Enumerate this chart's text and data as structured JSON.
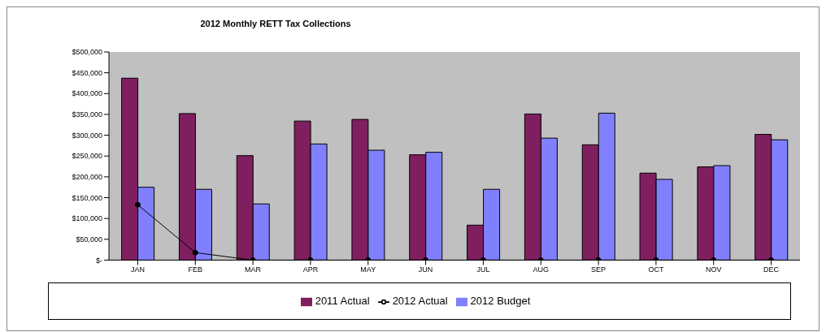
{
  "chart_data": {
    "type": "bar",
    "title": "2012 Monthly RETT Tax Collections",
    "categories": [
      "JAN",
      "FEB",
      "MAR",
      "APR",
      "MAY",
      "JUN",
      "JUL",
      "AUG",
      "SEP",
      "OCT",
      "NOV",
      "DEC"
    ],
    "series": [
      {
        "name": "2011 Actual",
        "color": "#7f1f5f",
        "values": [
          437000,
          352000,
          251000,
          334000,
          338000,
          253000,
          84000,
          351000,
          277000,
          209000,
          224000,
          302000
        ]
      },
      {
        "name": "2012 Budget",
        "color": "#8080ff",
        "values": [
          175000,
          170000,
          135000,
          279000,
          264000,
          259000,
          170000,
          293000,
          353000,
          194000,
          227000,
          289000
        ]
      },
      {
        "name": "2012 Actual",
        "type": "line",
        "color": "#000000",
        "values": [
          133000,
          18000,
          0,
          0,
          0,
          0,
          0,
          0,
          0,
          0,
          0,
          0
        ]
      }
    ],
    "ylim": [
      0,
      500000
    ],
    "yticks": [
      {
        "value": 0,
        "label": "$-"
      },
      {
        "value": 50000,
        "label": "$50,000"
      },
      {
        "value": 100000,
        "label": "$100,000"
      },
      {
        "value": 150000,
        "label": "$150,000"
      },
      {
        "value": 200000,
        "label": "$200,000"
      },
      {
        "value": 250000,
        "label": "$250,000"
      },
      {
        "value": 300000,
        "label": "$300,000"
      },
      {
        "value": 350000,
        "label": "$350,000"
      },
      {
        "value": 400000,
        "label": "$400,000"
      },
      {
        "value": 450000,
        "label": "$450,000"
      },
      {
        "value": 500000,
        "label": "$500,000"
      }
    ],
    "grid": false,
    "legend": "bottom",
    "marker": "circle",
    "line_style": "solid"
  }
}
